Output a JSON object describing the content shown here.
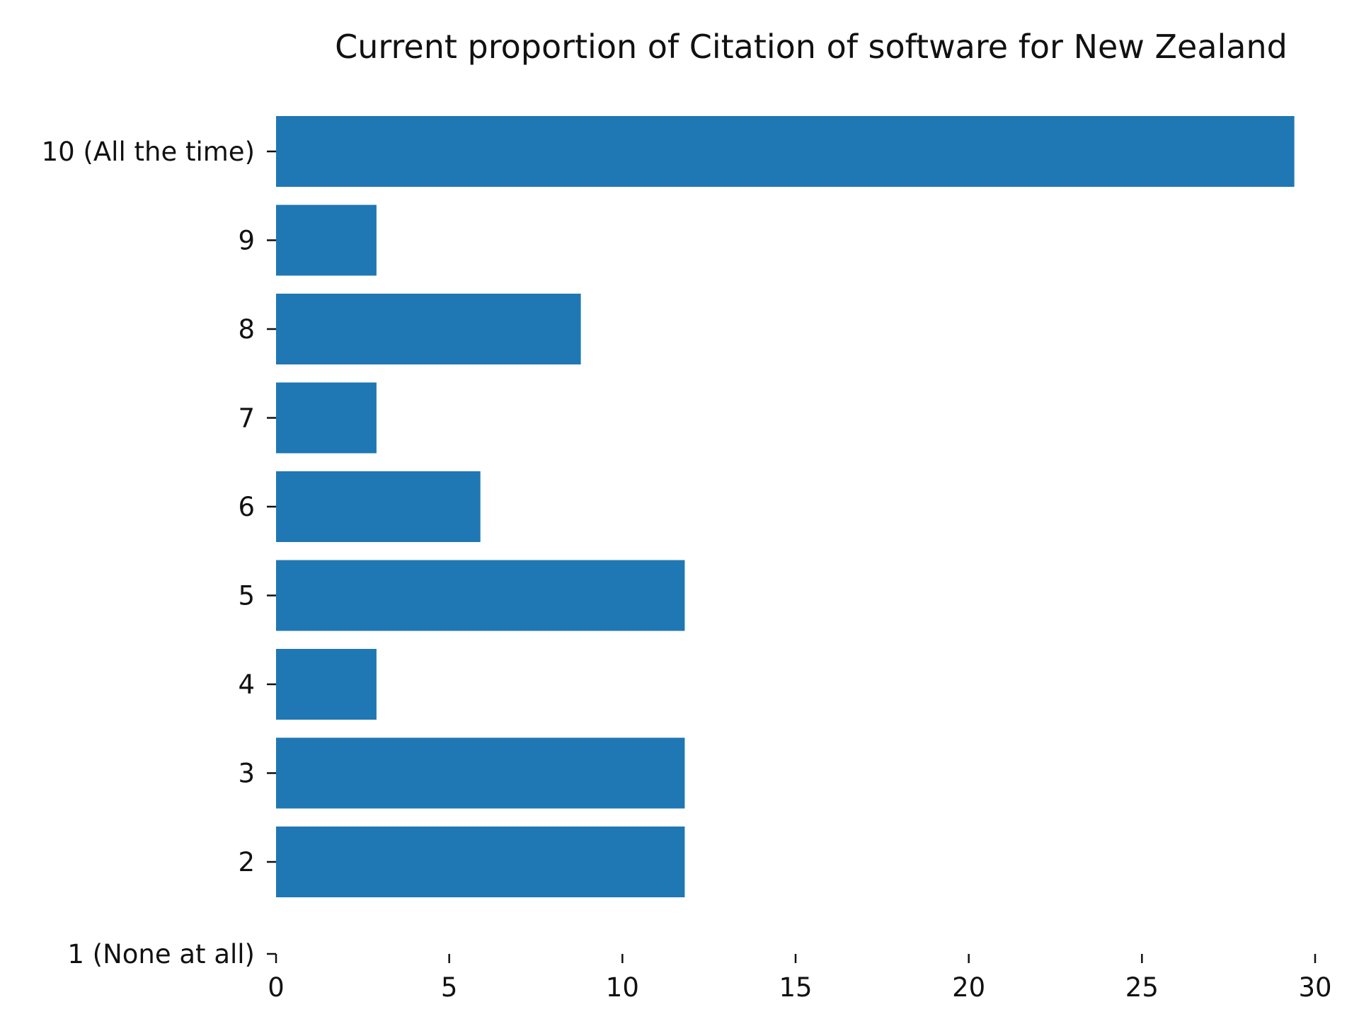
{
  "chart_data": {
    "type": "bar",
    "orientation": "horizontal",
    "title": "Current proportion of Citation of software for New Zealand",
    "xlabel": "",
    "ylabel": "",
    "categories": [
      "1 (None at all)",
      "2",
      "3",
      "4",
      "5",
      "6",
      "7",
      "8",
      "9",
      "10 (All the time)"
    ],
    "values": [
      0,
      11.8,
      11.8,
      2.9,
      11.8,
      5.9,
      2.9,
      8.8,
      2.9,
      29.4
    ],
    "xlim": [
      0,
      30
    ],
    "xticks": [
      "0",
      "5",
      "10",
      "15",
      "20",
      "25",
      "30"
    ],
    "grid": false,
    "legend": "none",
    "bar_color": "#1f77b4"
  }
}
